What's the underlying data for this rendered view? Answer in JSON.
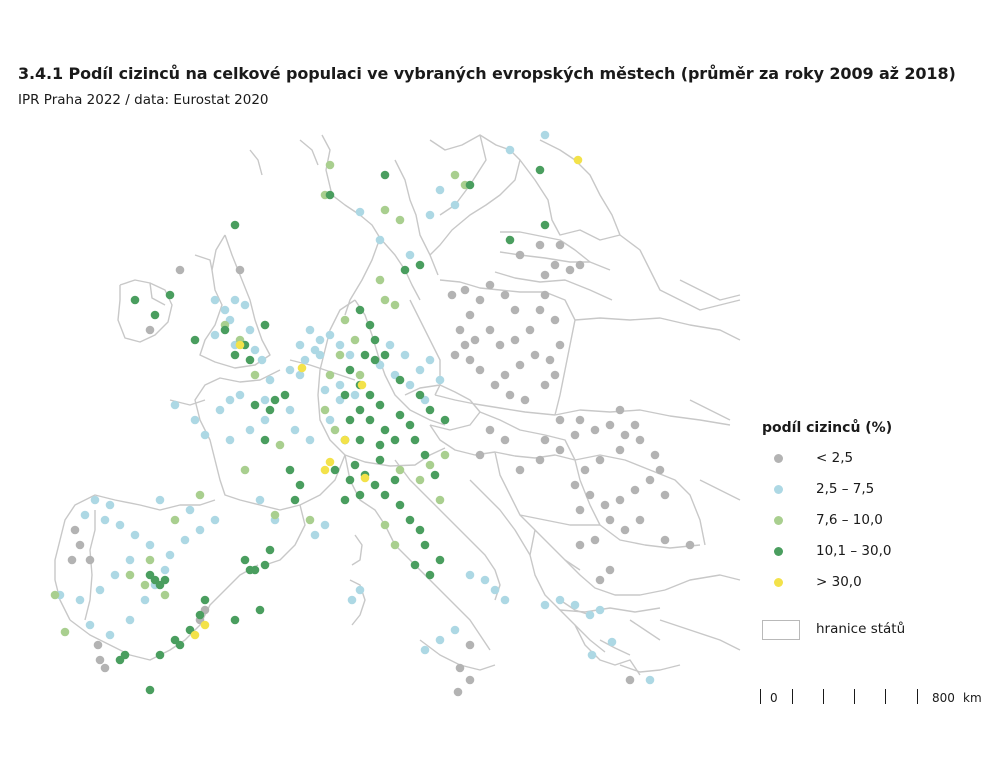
{
  "header": {
    "title": "3.4.1 Podíl cizinců na celkové populaci ve vybraných evropských městech (průměr za roky 2009 až 2018)",
    "subtitle": "IPR Praha 2022 / data: Eurostat 2020"
  },
  "legend": {
    "title": "podíl cizinců (%)",
    "classes": [
      {
        "label": "< 2,5",
        "color": "#b3b3b3"
      },
      {
        "label": "2,5 – 7,5",
        "color": "#add8e4"
      },
      {
        "label": "7,6 – 10,0",
        "color": "#a9cf8f"
      },
      {
        "label": "10,1 – 30,0",
        "color": "#4a9e5f"
      },
      {
        "label": "> 30,0",
        "color": "#f3e24a"
      }
    ],
    "border_label": "hranice států",
    "border_color": "#c4c4c4"
  },
  "scale": {
    "zero_label": "0",
    "end_label": "800",
    "unit": "km"
  }
}
